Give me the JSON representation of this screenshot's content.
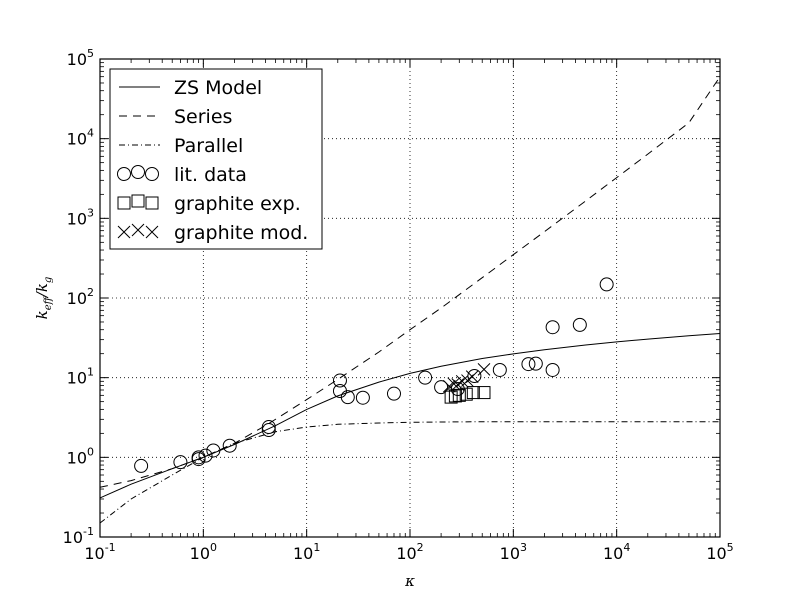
{
  "chart_data": {
    "type": "scatter",
    "title": "",
    "xlabel": "κ",
    "ylabel_parts": [
      "k",
      "eff",
      "/k",
      "g"
    ],
    "xscale": "log",
    "yscale": "log",
    "xlim": [
      0.1,
      100000
    ],
    "ylim": [
      0.1,
      100000
    ],
    "grid": true,
    "grid_style": "dotted",
    "legend_location": "upper left",
    "x_ticks": [
      {
        "base": "10",
        "exp": "-1",
        "value": 0.1
      },
      {
        "base": "10",
        "exp": "0",
        "value": 1
      },
      {
        "base": "10",
        "exp": "1",
        "value": 10
      },
      {
        "base": "10",
        "exp": "2",
        "value": 100
      },
      {
        "base": "10",
        "exp": "3",
        "value": 1000
      },
      {
        "base": "10",
        "exp": "4",
        "value": 10000
      },
      {
        "base": "10",
        "exp": "5",
        "value": 100000
      }
    ],
    "y_ticks": [
      {
        "base": "10",
        "exp": "-1",
        "value": 0.1
      },
      {
        "base": "10",
        "exp": "0",
        "value": 1
      },
      {
        "base": "10",
        "exp": "1",
        "value": 10
      },
      {
        "base": "10",
        "exp": "2",
        "value": 100
      },
      {
        "base": "10",
        "exp": "3",
        "value": 1000
      },
      {
        "base": "10",
        "exp": "4",
        "value": 10000
      },
      {
        "base": "10",
        "exp": "5",
        "value": 100000
      }
    ],
    "series": [
      {
        "name": "ZS Model",
        "kind": "line",
        "linestyle": "solid",
        "x": [
          0.1,
          0.2,
          0.5,
          1,
          2,
          5,
          10,
          20,
          50,
          100,
          200,
          500,
          1000,
          2000,
          5000,
          10000,
          20000,
          50000,
          100000
        ],
        "y": [
          0.31,
          0.46,
          0.72,
          1.0,
          1.45,
          2.5,
          4.0,
          5.9,
          8.8,
          11.3,
          13.9,
          17.4,
          19.9,
          22.4,
          25.7,
          28.1,
          30.5,
          33.5,
          35.8
        ]
      },
      {
        "name": "Series",
        "kind": "line",
        "linestyle": "dashed",
        "x": [
          0.1,
          0.2,
          0.5,
          1,
          2,
          4,
          10,
          20,
          50,
          100,
          200,
          500,
          1000,
          2000,
          5000,
          10000,
          20000,
          50000,
          100000
        ],
        "y": [
          0.42,
          0.51,
          0.72,
          1.0,
          1.5,
          2.5,
          5.3,
          9.5,
          21,
          40,
          75,
          180,
          350,
          680,
          1650,
          3250,
          6400,
          15800,
          60000
        ]
      },
      {
        "name": "Parallel",
        "kind": "line",
        "linestyle": "dashdot",
        "x": [
          0.1,
          0.2,
          0.5,
          1,
          2,
          5,
          10,
          20,
          50,
          100,
          200,
          500,
          1000,
          10000,
          100000
        ],
        "y": [
          0.15,
          0.3,
          0.6,
          1.0,
          1.5,
          2.1,
          2.4,
          2.6,
          2.7,
          2.75,
          2.78,
          2.8,
          2.8,
          2.8,
          2.8
        ]
      },
      {
        "name": "lit. data",
        "kind": "marker",
        "marker": "circle",
        "x": [
          0.25,
          0.6,
          0.9,
          0.9,
          1.05,
          1.25,
          1.8,
          4.3,
          4.3,
          21,
          21,
          25,
          35,
          70,
          140,
          200,
          290,
          420,
          740,
          1400,
          1650,
          2400,
          2400,
          4400,
          8000
        ],
        "y": [
          0.78,
          0.87,
          0.95,
          1.0,
          1.05,
          1.22,
          1.4,
          2.2,
          2.4,
          9.2,
          6.8,
          5.7,
          5.6,
          6.3,
          10.0,
          7.6,
          7.2,
          10.5,
          12.5,
          14.8,
          15.0,
          43,
          12.5,
          46,
          148
        ]
      },
      {
        "name": "graphite exp.",
        "kind": "marker",
        "marker": "square",
        "x": [
          250,
          275,
          300,
          350,
          410,
          520
        ],
        "y": [
          5.7,
          5.9,
          6.0,
          6.2,
          6.5,
          6.5
        ]
      },
      {
        "name": "graphite mod.",
        "kind": "marker",
        "marker": "x",
        "x": [
          240,
          265,
          290,
          320,
          360,
          400,
          520
        ],
        "y": [
          7.8,
          8.4,
          8.2,
          9.0,
          9.2,
          10.3,
          12.7
        ]
      }
    ]
  }
}
